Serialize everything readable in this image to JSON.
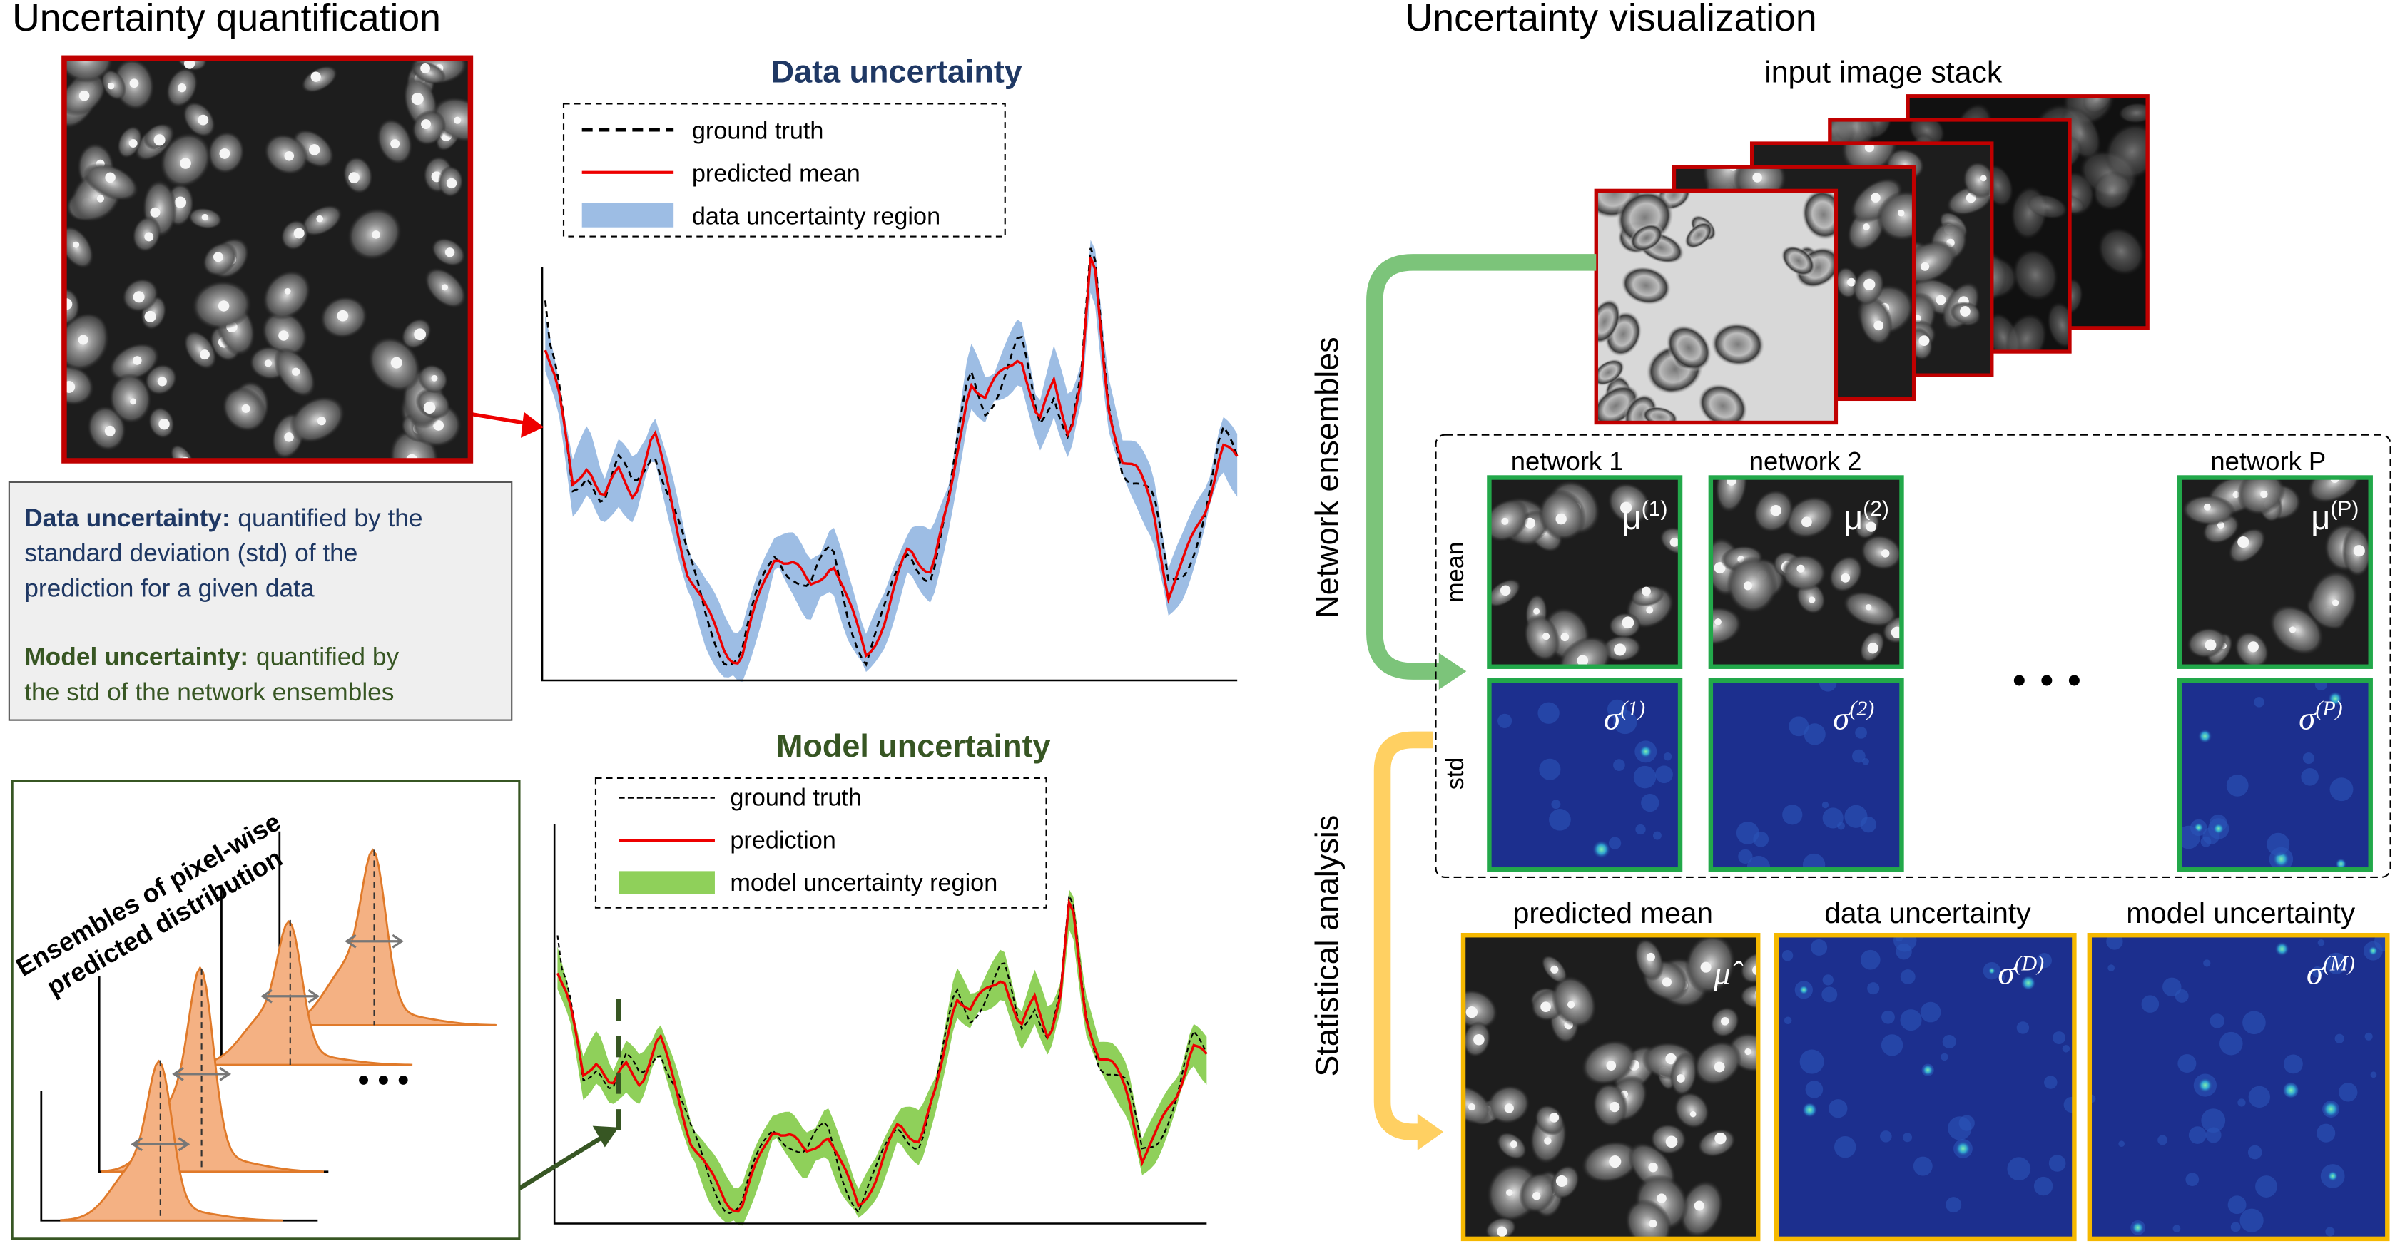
{
  "left_title": "Uncertainty quantification",
  "right_title": "Uncertainty visualization",
  "data_plot": {
    "title": "Data uncertainty",
    "legend": [
      "ground truth",
      "predicted mean",
      "data uncertainty region"
    ]
  },
  "model_plot": {
    "title": "Model uncertainty",
    "legend": [
      "ground truth",
      "prediction",
      "model uncertainty region"
    ]
  },
  "info_box": {
    "data": {
      "label": "Data uncertainty:",
      "lines": [
        "quantified  by the",
        "standard deviation (std) of the",
        "prediction for a given data"
      ]
    },
    "model": {
      "label": "Model uncertainty:",
      "lines": [
        "quantified by",
        "the std of the network ensembles"
      ]
    }
  },
  "ensemble_box": {
    "lines": [
      "Ensembles of pixel-wise",
      "predicted distribution"
    ]
  },
  "input_stack": {
    "label": "input image stack"
  },
  "side_labels": [
    "Network ensembles",
    "Statistical analysis"
  ],
  "row_labels": [
    "mean",
    "std"
  ],
  "networks": [
    {
      "label": "network 1",
      "mean": {
        "symbol": "μ",
        "index": "(1)"
      },
      "std": {
        "symbol": "σ",
        "index": "(1)"
      }
    },
    {
      "label": "network 2",
      "mean": {
        "symbol": "μ",
        "index": "(2)"
      },
      "std": {
        "symbol": "σ",
        "index": "(2)"
      }
    },
    {
      "label": "network P",
      "mean": {
        "symbol": "μ",
        "index": "(P)"
      },
      "std": {
        "symbol": "σ",
        "index": "(P)"
      }
    }
  ],
  "outputs": [
    {
      "label": "predicted mean",
      "symbol": "μ̂"
    },
    {
      "label": "data uncertainty",
      "symbol": "σ",
      "index": "(D)"
    },
    {
      "label": "model uncertainty",
      "symbol": "σ",
      "index": "(M)"
    }
  ]
}
